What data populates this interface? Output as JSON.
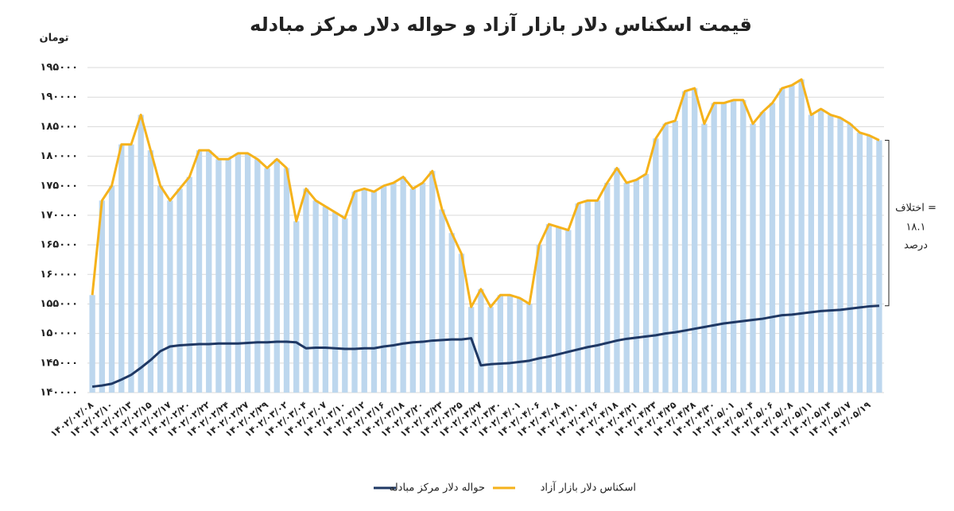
{
  "chart_data": {
    "type": "bar_line",
    "title": "قیمت اسکناس دلار بازار آزاد و حواله دلار مرکز مبادله",
    "y_label": "تومان",
    "annotation": [
      "اختلاف =",
      "۱۸.۱",
      "درصد"
    ],
    "categories": [
      "۱۴۰۲/۰۲/۰۸",
      null,
      "۱۴۰۲/۰۲/۱۰",
      null,
      "۱۴۰۲/۰۲/۱۳",
      null,
      "۱۴۰۲/۰۲/۱۵",
      null,
      "۱۴۰۲/۰۲/۱۷",
      null,
      "۱۴۰۲/۰۲/۲۰",
      null,
      "۱۴۰۲/۰۲/۲۲",
      null,
      "۱۴۰۲/۰۲/۲۴",
      null,
      "۱۴۰۲/۰۲/۲۷",
      null,
      "۱۴۰۲/۰۲/۲۹",
      null,
      "۱۴۰۲/۰۳/۰۲",
      null,
      "۱۴۰۲/۰۳/۰۴",
      null,
      "۱۴۰۲/۰۳/۰۷",
      null,
      "۱۴۰۲/۰۳/۱۰",
      null,
      "۱۴۰۲/۰۳/۱۲",
      null,
      "۱۴۰۲/۰۳/۱۶",
      null,
      "۱۴۰۲/۰۳/۱۸",
      null,
      "۱۴۰۲/۰۳/۲۰",
      null,
      "۱۴۰۲/۰۳/۲۳",
      null,
      "۱۴۰۲/۰۳/۲۵",
      null,
      "۱۴۰۲/۰۳/۲۷",
      null,
      "۱۴۰۲/۰۳/۳۰",
      null,
      "۱۴۰۲/۰۴/۰۱",
      null,
      "۱۴۰۲/۰۴/۰۶",
      null,
      "۱۴۰۲/۰۴/۰۸",
      null,
      "۱۴۰۲/۰۴/۱۰",
      null,
      "۱۴۰۲/۰۴/۱۶",
      null,
      "۱۴۰۲/۰۴/۱۸",
      null,
      "۱۴۰۲/۰۴/۲۱",
      null,
      "۱۴۰۲/۰۴/۲۳",
      null,
      "۱۴۰۲/۰۴/۲۵",
      null,
      "۱۴۰۲/۰۴/۲۸",
      null,
      "۱۴۰۲/۰۴/۳۰",
      null,
      "۱۴۰۲/۰۵/۰۱",
      null,
      "۱۴۰۲/۰۵/۰۴",
      null,
      "۱۴۰۲/۰۵/۰۶",
      null,
      "۱۴۰۲/۰۵/۰۸",
      null,
      "۱۴۰۲/۰۵/۱۱",
      null,
      "۱۴۰۲/۰۵/۱۴",
      null,
      "۱۴۰۲/۰۵/۱۷",
      null,
      "۱۴۰۲/۰۵/۱۹",
      null
    ],
    "series": [
      {
        "name": "حواله دلار مرکز مبادله",
        "color": "#1f3864",
        "values": [
          141000,
          141200,
          141500,
          142200,
          143000,
          144200,
          145500,
          147000,
          147800,
          148000,
          148100,
          148200,
          148200,
          148300,
          148300,
          148300,
          148400,
          148500,
          148500,
          148600,
          148600,
          148500,
          147500,
          147600,
          147600,
          147500,
          147400,
          147400,
          147500,
          147500,
          147800,
          148000,
          148300,
          148500,
          148600,
          148800,
          148900,
          149000,
          149000,
          149200,
          144600,
          144800,
          144900,
          145000,
          145200,
          145400,
          145800,
          146100,
          146500,
          146900,
          147300,
          147700,
          148000,
          148400,
          148800,
          149100,
          149300,
          149500,
          149700,
          150000,
          150200,
          150500,
          150800,
          151100,
          151400,
          151700,
          151900,
          152100,
          152300,
          152500,
          152800,
          153100,
          153200,
          153400,
          153600,
          153800,
          153900,
          154000,
          154200,
          154400,
          154600,
          154700
        ]
      },
      {
        "name": "اسکناس دلار بازار آزاد",
        "color": "#f5b21b",
        "bar_color": "#bdd7ee",
        "values": [
          156500,
          172500,
          175000,
          182000,
          182000,
          187000,
          181000,
          175000,
          172500,
          174500,
          176500,
          181000,
          181000,
          179500,
          179500,
          180500,
          180500,
          179500,
          178000,
          179500,
          178000,
          169000,
          174500,
          172500,
          171500,
          170500,
          169500,
          174000,
          174500,
          174000,
          175000,
          175500,
          176500,
          174500,
          175500,
          177500,
          171000,
          167000,
          163500,
          154500,
          157500,
          154500,
          156500,
          156500,
          156000,
          155000,
          165000,
          168500,
          168000,
          167500,
          172000,
          172500,
          172500,
          175500,
          178000,
          175500,
          176000,
          177000,
          183000,
          185500,
          186000,
          191000,
          191500,
          185500,
          189000,
          189000,
          189500,
          189500,
          185500,
          187500,
          189000,
          191500,
          192000,
          193000,
          187000,
          188000,
          187000,
          186500,
          185500,
          184000,
          183500,
          182700
        ]
      }
    ],
    "ylim": [
      140000,
      196000
    ],
    "yticks": [
      {
        "value": 140000,
        "label": "۱۴۰۰۰۰"
      },
      {
        "value": 145000,
        "label": "۱۴۵۰۰۰"
      },
      {
        "value": 150000,
        "label": "۱۵۰۰۰۰"
      },
      {
        "value": 155000,
        "label": "۱۵۵۰۰۰"
      },
      {
        "value": 160000,
        "label": "۱۶۰۰۰۰"
      },
      {
        "value": 165000,
        "label": "۱۶۵۰۰۰"
      },
      {
        "value": 170000,
        "label": "۱۷۰۰۰۰"
      },
      {
        "value": 175000,
        "label": "۱۷۵۰۰۰"
      },
      {
        "value": 180000,
        "label": "۱۸۰۰۰۰"
      },
      {
        "value": 185000,
        "label": "۱۸۵۰۰۰"
      },
      {
        "value": 190000,
        "label": "۱۹۰۰۰۰"
      },
      {
        "value": 195000,
        "label": "۱۹۵۰۰۰"
      }
    ],
    "grid": true
  }
}
